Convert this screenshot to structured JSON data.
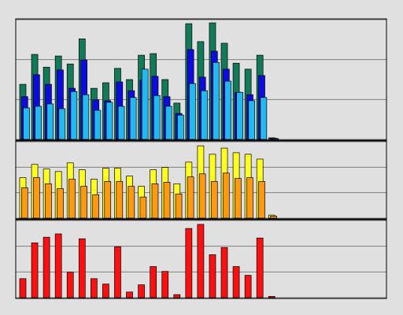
{
  "chart_data": [
    {
      "type": "bar",
      "categories": [
        null,
        null,
        null,
        null,
        null,
        null,
        null,
        null,
        null,
        null,
        null,
        null,
        null,
        null,
        null,
        null,
        null,
        null,
        null,
        null,
        null,
        null
      ],
      "series": [
        {
          "color": "#127a58",
          "values": [
            1.38,
            2.13,
            1.81,
            2.09,
            1.89,
            2.52,
            1.28,
            1.42,
            1.78,
            1.5,
            2.11,
            2.15,
            1.5,
            0.91,
            2.9,
            2.45,
            2.92,
            2.41,
            1.91,
            1.76,
            2.11,
            0.04
          ]
        },
        {
          "color": "#0c0ce0",
          "values": [
            1.07,
            1.62,
            1.38,
            1.74,
            1.28,
            1.99,
            0.99,
            0.97,
            1.44,
            1.22,
            1.48,
            1.58,
            1.07,
            0.65,
            2.25,
            1.56,
            2.21,
            1.76,
            1.18,
            1.12,
            1.6,
            0.03
          ]
        },
        {
          "color": "#22b8f0",
          "values": [
            0.79,
            0.83,
            0.89,
            0.77,
            1.2,
            1.12,
            0.73,
            0.93,
            0.83,
            1.05,
            1.76,
            1.1,
            0.83,
            0.61,
            1.4,
            1.22,
            1.93,
            1.46,
            1.18,
            0.97,
            1.05,
            0.02
          ]
        }
      ],
      "ylim": [
        0,
        3
      ],
      "yticks": [
        0,
        1,
        2,
        3
      ],
      "grid": true
    },
    {
      "type": "bar",
      "categories": [
        null,
        null,
        null,
        null,
        null,
        null,
        null,
        null,
        null,
        null,
        null,
        null,
        null,
        null,
        null,
        null,
        null,
        null,
        null,
        null,
        null,
        null
      ],
      "series": [
        {
          "color": "#ffff22",
          "values": [
            1.59,
            2.11,
            1.93,
            1.83,
            2.17,
            1.9,
            1.53,
            1.96,
            1.96,
            1.65,
            1.25,
            1.9,
            1.99,
            1.35,
            2.2,
            2.84,
            2.51,
            2.75,
            2.57,
            2.51,
            2.32,
            0.12
          ]
        },
        {
          "color": "#ff9a10",
          "values": [
            1.19,
            1.59,
            1.35,
            1.16,
            1.53,
            1.25,
            0.92,
            1.44,
            1.44,
            1.25,
            0.83,
            1.35,
            1.41,
            0.95,
            1.62,
            1.74,
            1.44,
            1.77,
            1.56,
            1.59,
            1.44,
            0.08
          ]
        }
      ],
      "ylim": [
        0,
        3
      ],
      "yticks": [
        0,
        1,
        2,
        3
      ],
      "grid": true
    },
    {
      "type": "bar",
      "categories": [
        null,
        null,
        null,
        null,
        null,
        null,
        null,
        null,
        null,
        null,
        null,
        null,
        null,
        null,
        null,
        null,
        null,
        null,
        null,
        null,
        null,
        null
      ],
      "series": [
        {
          "color": "#ff1010",
          "values": [
            0.74,
            2.13,
            2.35,
            2.48,
            0.99,
            2.29,
            0.74,
            0.53,
            1.98,
            0.22,
            0.5,
            1.21,
            1.02,
            0.12,
            2.69,
            2.85,
            1.67,
            1.95,
            1.21,
            0.87,
            2.32,
            0.05
          ]
        }
      ],
      "ylim": [
        0,
        3
      ],
      "yticks": [
        0,
        1,
        2,
        3
      ],
      "grid": true
    }
  ]
}
